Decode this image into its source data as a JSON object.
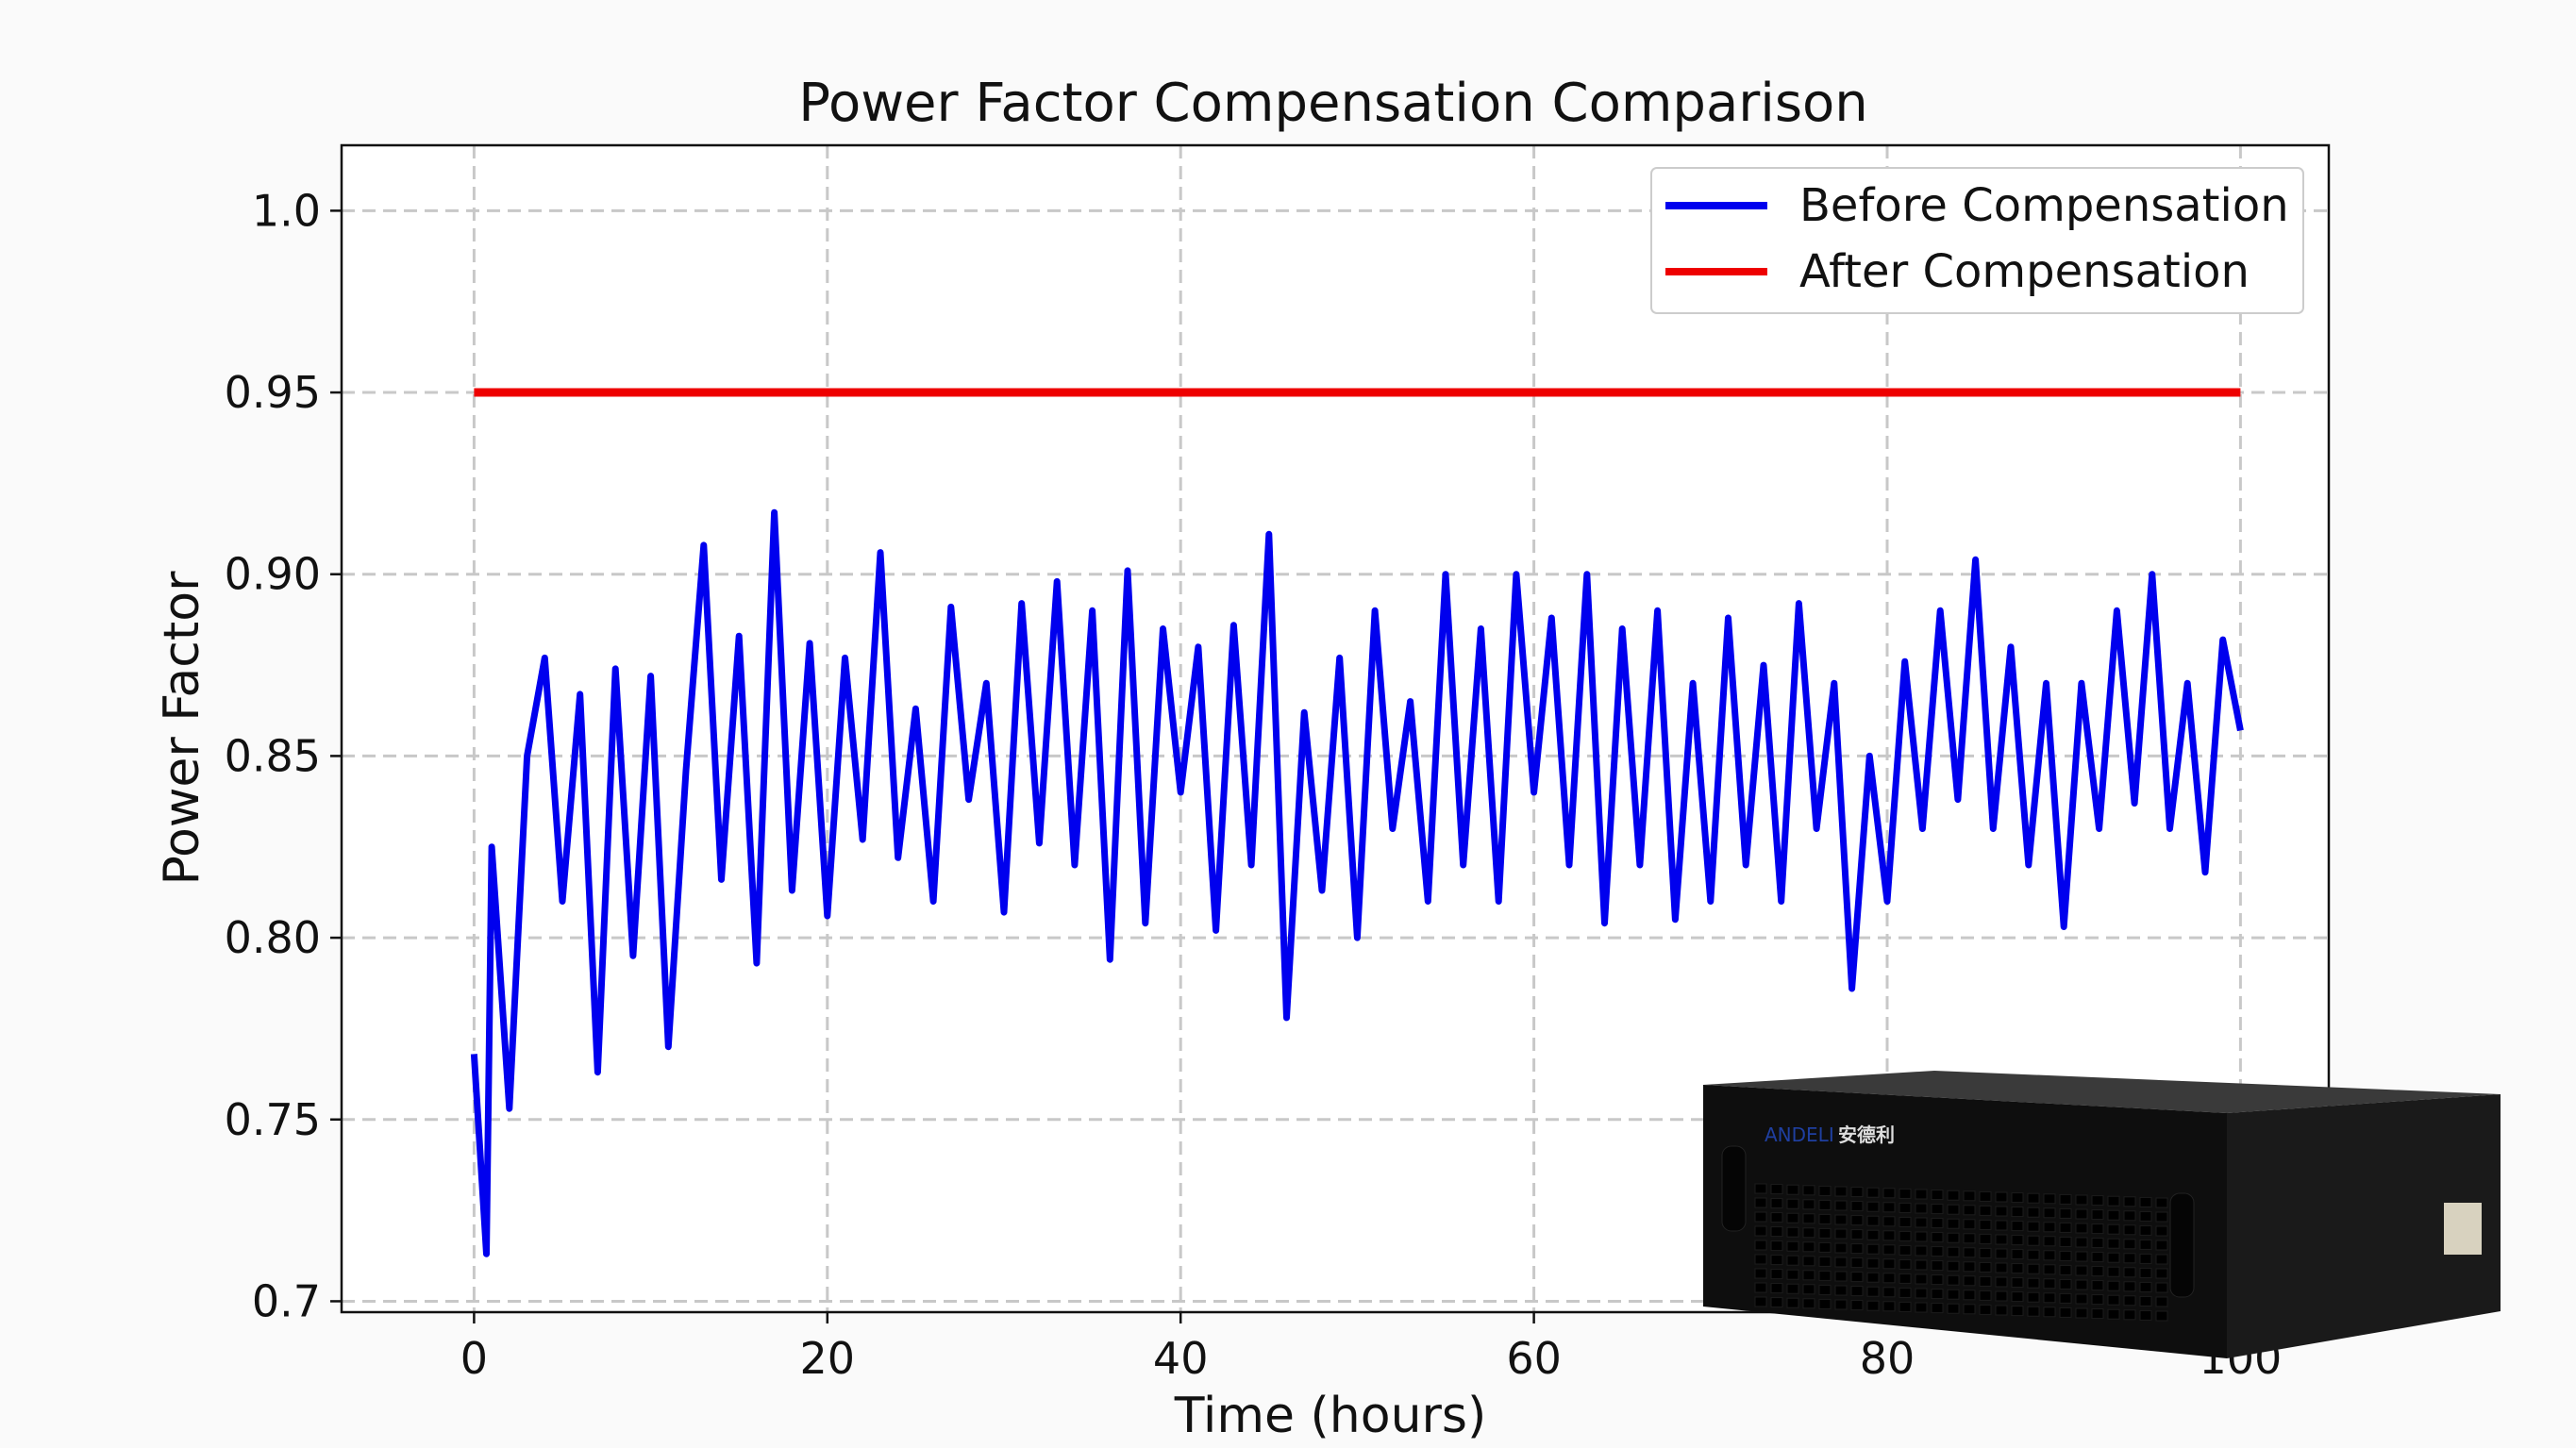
{
  "chart_data": {
    "type": "line",
    "title": "Power Factor Compensation Comparison",
    "xlabel": "Time (hours)",
    "ylabel": "Power Factor",
    "xlim": [
      -7.5,
      105
    ],
    "ylim": [
      0.697,
      1.018
    ],
    "xticks": [
      0,
      20,
      40,
      60,
      80,
      100
    ],
    "xtick_labels": [
      "0",
      "20",
      "40",
      "60",
      "80",
      "100"
    ],
    "yticks": [
      0.7,
      0.75,
      0.8,
      0.85,
      0.9,
      0.95,
      1.0
    ],
    "ytick_labels": [
      "0.7",
      "0.75",
      "0.80",
      "0.85",
      "0.90",
      "0.95",
      "1.0"
    ],
    "grid": true,
    "legend_position": "top-right",
    "series": [
      {
        "name": "Before Compensation",
        "color": "#0000ee",
        "x": [
          0,
          0.7,
          1,
          2,
          3,
          4,
          5,
          6,
          7,
          8,
          9,
          10,
          11,
          12,
          13,
          14,
          15,
          16,
          17,
          18,
          19,
          20,
          21,
          22,
          23,
          24,
          25,
          26,
          27,
          28,
          29,
          30,
          31,
          32,
          33,
          34,
          35,
          36,
          37,
          38,
          39,
          40,
          41,
          42,
          43,
          44,
          45,
          46,
          47,
          48,
          49,
          50,
          51,
          52,
          53,
          54,
          55,
          56,
          57,
          58,
          59,
          60,
          61,
          62,
          63,
          64,
          65,
          66,
          67,
          68,
          69,
          70,
          71,
          72,
          73,
          74,
          75,
          76,
          77,
          78,
          79,
          80,
          81,
          82,
          83,
          84,
          85,
          86,
          87,
          88,
          89,
          90,
          91,
          92,
          93,
          94,
          95,
          96,
          97,
          98,
          99,
          100
        ],
        "y": [
          0.768,
          0.713,
          0.825,
          0.753,
          0.85,
          0.877,
          0.81,
          0.867,
          0.763,
          0.874,
          0.795,
          0.872,
          0.77,
          0.846,
          0.908,
          0.816,
          0.883,
          0.793,
          0.917,
          0.813,
          0.881,
          0.806,
          0.877,
          0.827,
          0.906,
          0.822,
          0.863,
          0.81,
          0.891,
          0.838,
          0.87,
          0.807,
          0.892,
          0.826,
          0.898,
          0.82,
          0.89,
          0.794,
          0.901,
          0.804,
          0.885,
          0.84,
          0.88,
          0.802,
          0.886,
          0.82,
          0.911,
          0.778,
          0.862,
          0.813,
          0.877,
          0.8,
          0.89,
          0.83,
          0.865,
          0.81,
          0.9,
          0.82,
          0.885,
          0.81,
          0.9,
          0.84,
          0.888,
          0.82,
          0.9,
          0.804,
          0.885,
          0.82,
          0.89,
          0.805,
          0.87,
          0.81,
          0.888,
          0.82,
          0.875,
          0.81,
          0.892,
          0.83,
          0.87,
          0.786,
          0.85,
          0.81,
          0.876,
          0.83,
          0.89,
          0.838,
          0.904,
          0.83,
          0.88,
          0.82,
          0.87,
          0.803,
          0.87,
          0.83,
          0.89,
          0.837,
          0.9,
          0.83,
          0.87,
          0.818,
          0.882,
          0.857
        ]
      },
      {
        "name": "After Compensation",
        "color": "#ee0000",
        "x": [
          0,
          100
        ],
        "y": [
          0.95,
          0.95
        ]
      }
    ]
  },
  "product_image": {
    "logo_text": "ANDELI 安德利",
    "icon": "power-compensation-cabinet"
  }
}
